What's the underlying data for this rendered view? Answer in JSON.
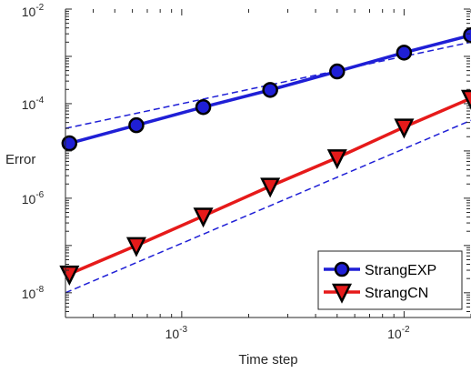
{
  "chart_data": {
    "type": "line",
    "xscale": "log",
    "yscale": "log",
    "xlabel": "Time step",
    "ylabel": "Error",
    "xlim": [
      0.0003,
      0.02
    ],
    "ylim": [
      3e-09,
      0.01
    ],
    "x_ticks": [
      {
        "value": 0.001,
        "base": "10",
        "exp": "-3"
      },
      {
        "value": 0.01,
        "base": "10",
        "exp": "-2"
      }
    ],
    "y_ticks": [
      {
        "value": 1e-08,
        "base": "10",
        "exp": "-8"
      },
      {
        "value": 1e-06,
        "base": "10",
        "exp": "-6"
      },
      {
        "value": 0.0001,
        "base": "10",
        "exp": "-4"
      },
      {
        "value": 0.01,
        "base": "10",
        "exp": "-2"
      }
    ],
    "x": [
      0.0003125,
      0.000625,
      0.00125,
      0.0025,
      0.005,
      0.01,
      0.02
    ],
    "series": [
      {
        "name": "StrangEXP",
        "color": "#1f1fd6",
        "marker": "circle",
        "marker_color": "#1f1fd6",
        "values": [
          1.45e-05,
          3.5e-05,
          8.45e-05,
          0.000195,
          0.00048,
          0.0012,
          0.0028
        ]
      },
      {
        "name": "StrangCN",
        "color": "#e61a1a",
        "marker": "triangle-down",
        "marker_color": "#e61a1a",
        "values": [
          2.5e-08,
          1e-07,
          4.2e-07,
          1.8e-06,
          7.2e-06,
          3.2e-05,
          0.00013
        ]
      }
    ],
    "reference_lines": [
      {
        "style": "dashed",
        "color": "#1f1fd6",
        "slope": 1,
        "x": [
          0.0003,
          0.02
        ],
        "values": [
          3e-05,
          0.002
        ]
      },
      {
        "style": "dashed",
        "color": "#1f1fd6",
        "slope": 2,
        "x": [
          0.0003,
          0.02
        ],
        "values": [
          1e-08,
          4.44e-05
        ]
      }
    ],
    "legend": {
      "position": "bottom-right"
    },
    "grid": false,
    "colors": {
      "axis": "#262626",
      "background": "#ffffff"
    }
  }
}
